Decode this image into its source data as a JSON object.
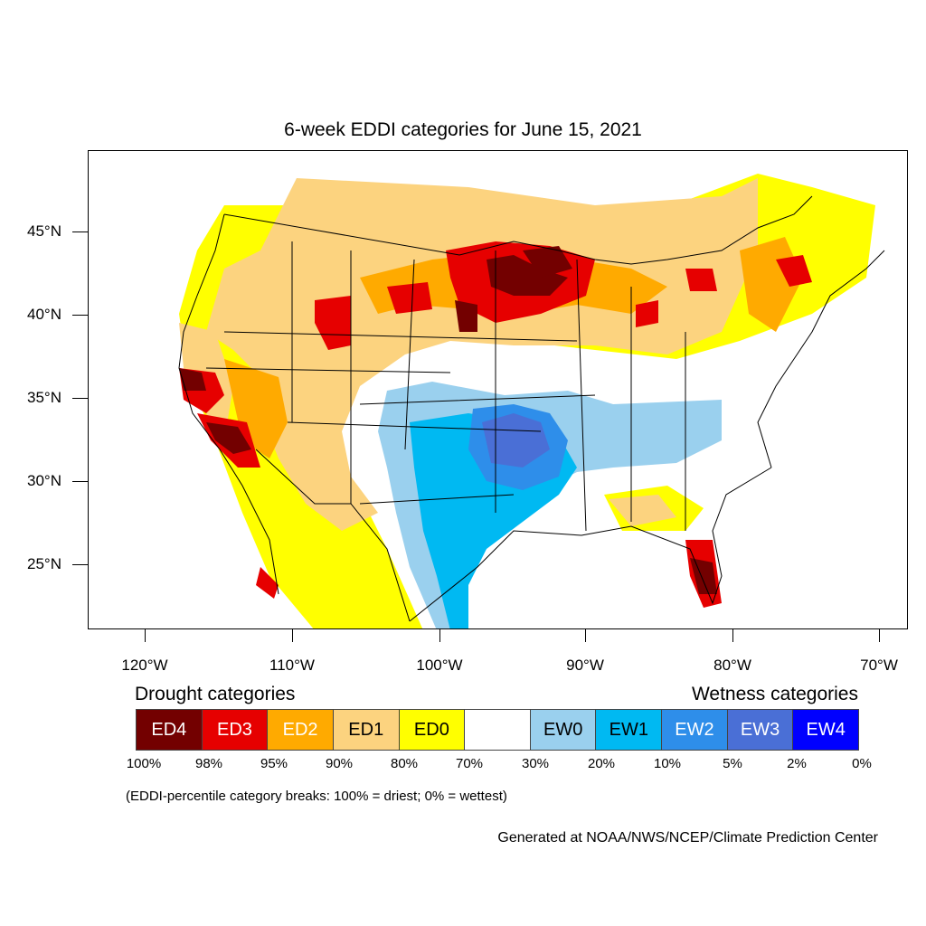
{
  "title": "6-week EDDI categories for June 15, 2021",
  "map": {
    "lat_labels": [
      "45°N",
      "40°N",
      "35°N",
      "30°N",
      "25°N"
    ],
    "lon_labels": [
      "120°W",
      "110°W",
      "100°W",
      "90°W",
      "80°W",
      "70°W"
    ],
    "lon_range": [
      -124,
      -68.5
    ],
    "lat_range": [
      21,
      49.8
    ],
    "region_colors": {
      "ED4": "#730000",
      "ED3": "#e60000",
      "ED2": "#ffaa00",
      "ED1": "#fcd37f",
      "ED0": "#ffff00",
      "neutral": "#ffffff",
      "EW0": "#9ad0ee",
      "EW1": "#00b9f2",
      "EW2": "#2e8eea",
      "EW3": "#4a6fd6",
      "EW4": "#0000ff"
    }
  },
  "legend": {
    "drought_title": "Drought categories",
    "wetness_title": "Wetness categories",
    "categories": [
      {
        "label": "ED4",
        "color": "#730000",
        "text_color": "#ffffff"
      },
      {
        "label": "ED3",
        "color": "#e60000",
        "text_color": "#ffffff"
      },
      {
        "label": "ED2",
        "color": "#ffaa00",
        "text_color": "#ffffff"
      },
      {
        "label": "ED1",
        "color": "#fcd37f",
        "text_color": "#000000"
      },
      {
        "label": "ED0",
        "color": "#ffff00",
        "text_color": "#000000"
      },
      {
        "label": "",
        "color": "#ffffff",
        "text_color": "#000000"
      },
      {
        "label": "EW0",
        "color": "#9ad0ee",
        "text_color": "#000000"
      },
      {
        "label": "EW1",
        "color": "#00b9f2",
        "text_color": "#000000"
      },
      {
        "label": "EW2",
        "color": "#2e8eea",
        "text_color": "#ffffff"
      },
      {
        "label": "EW3",
        "color": "#4a6fd6",
        "text_color": "#ffffff"
      },
      {
        "label": "EW4",
        "color": "#0000ff",
        "text_color": "#ffffff"
      }
    ],
    "breaks": [
      "100%",
      "98%",
      "95%",
      "90%",
      "80%",
      "70%",
      "30%",
      "20%",
      "10%",
      "5%",
      "2%",
      "0%"
    ]
  },
  "note": "(EDDI-percentile category breaks: 100% = driest; 0% = wettest)",
  "credit": "Generated at NOAA/NWS/NCEP/Climate Prediction Center"
}
